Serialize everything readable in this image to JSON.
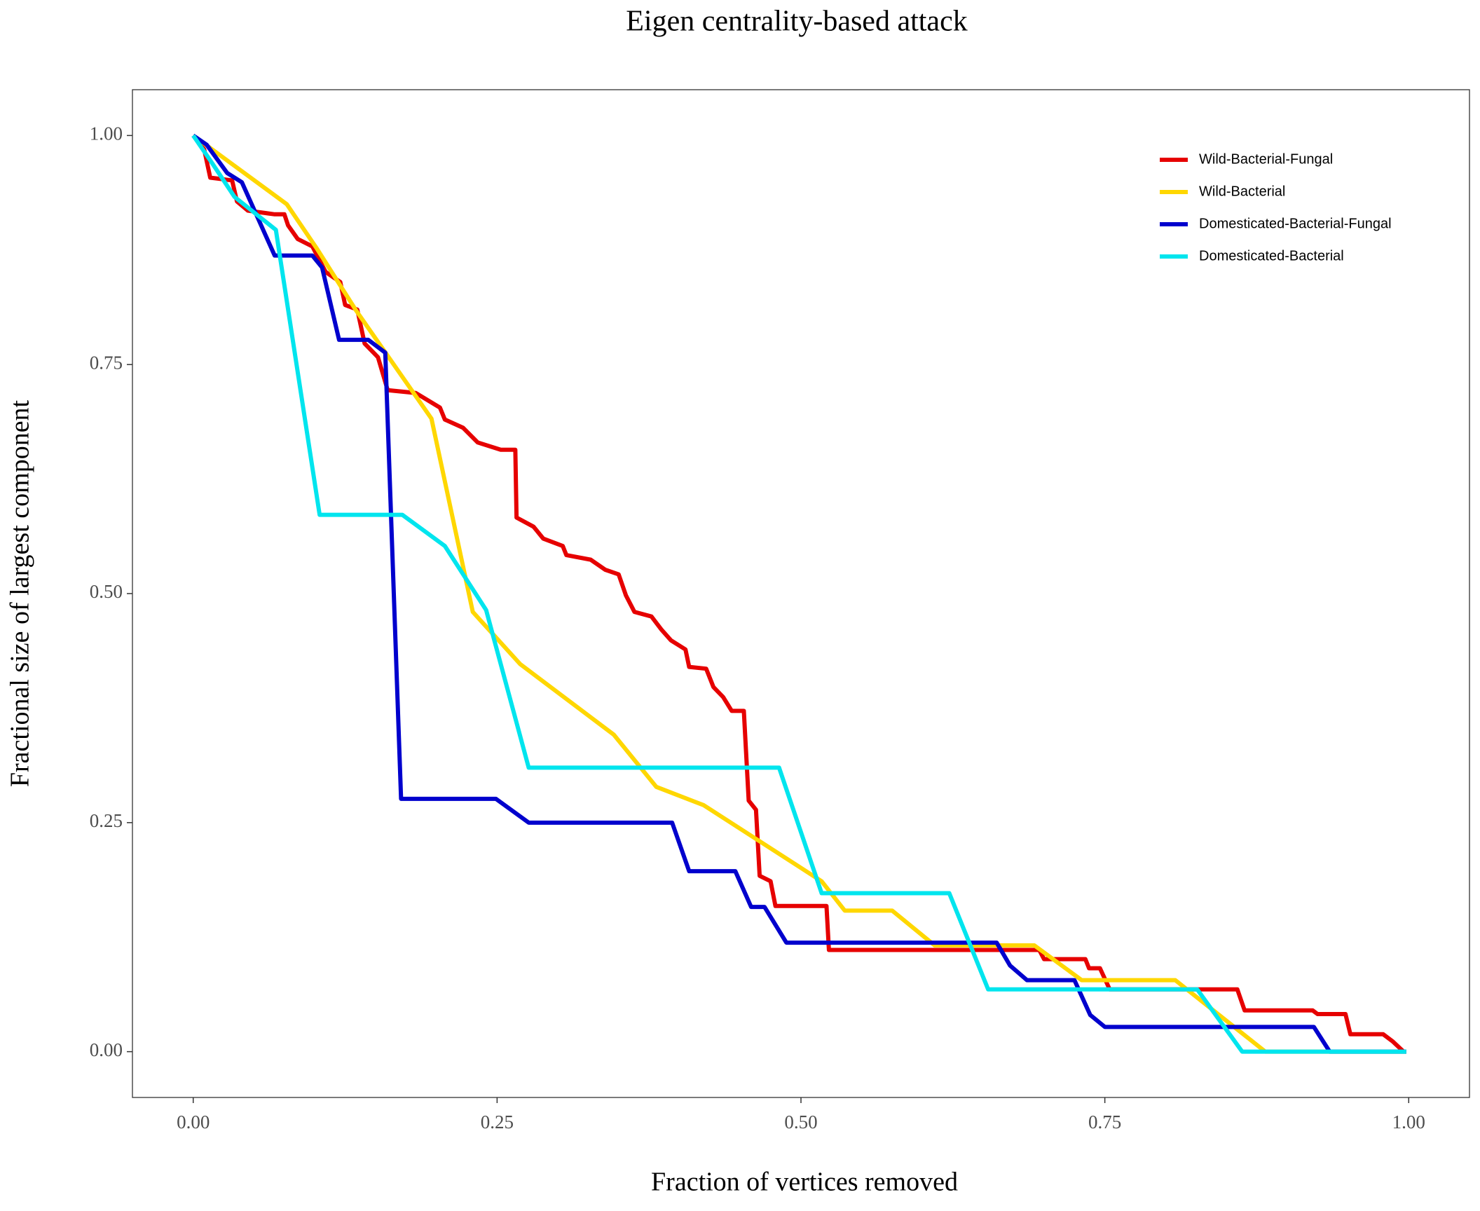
{
  "chart_data": {
    "type": "line",
    "title": "Eigen centrality-based attack",
    "x_label": "Fraction of vertices removed",
    "y_label": "Fractional size of largest component",
    "xlim": [
      -0.05,
      1.05
    ],
    "ylim": [
      -0.05,
      1.05
    ],
    "xticks": [
      {
        "value": 0,
        "label": "0.00"
      },
      {
        "value": 0.25,
        "label": "0.25"
      },
      {
        "value": 0.5,
        "label": "0.50"
      },
      {
        "value": 0.75,
        "label": "0.75"
      },
      {
        "value": 1,
        "label": "1.00"
      }
    ],
    "yticks": [
      {
        "value": 0,
        "label": "0.00"
      },
      {
        "value": 0.25,
        "label": "0.25"
      },
      {
        "value": 0.5,
        "label": "0.50"
      },
      {
        "value": 0.75,
        "label": "0.75"
      },
      {
        "value": 1,
        "label": "1.00"
      }
    ],
    "grid": false,
    "legend_position": "top-right",
    "series": [
      {
        "name": "Wild-Bacterial-Fungal",
        "color": "#e60000",
        "x": [
          0,
          0.009,
          0.014,
          0.032,
          0.036,
          0.045,
          0.067,
          0.075,
          0.078,
          0.086,
          0.098,
          0.109,
          0.121,
          0.125,
          0.135,
          0.141,
          0.152,
          0.16,
          0.183,
          0.203,
          0.207,
          0.222,
          0.234,
          0.253,
          0.265,
          0.266,
          0.28,
          0.288,
          0.304,
          0.307,
          0.327,
          0.339,
          0.35,
          0.356,
          0.363,
          0.377,
          0.385,
          0.393,
          0.405,
          0.408,
          0.422,
          0.428,
          0.436,
          0.443,
          0.453,
          0.457,
          0.463,
          0.466,
          0.475,
          0.479,
          0.521,
          0.523,
          0.696,
          0.7,
          0.734,
          0.737,
          0.746,
          0.754,
          0.859,
          0.865,
          0.921,
          0.925,
          0.948,
          0.952,
          0.979,
          0.987,
          0.995,
          0.996
        ],
        "values": [
          1,
          0.985,
          0.954,
          0.951,
          0.928,
          0.918,
          0.914,
          0.914,
          0.902,
          0.887,
          0.879,
          0.851,
          0.84,
          0.815,
          0.81,
          0.773,
          0.758,
          0.722,
          0.719,
          0.703,
          0.69,
          0.681,
          0.665,
          0.657,
          0.657,
          0.583,
          0.573,
          0.56,
          0.552,
          0.542,
          0.537,
          0.526,
          0.521,
          0.498,
          0.48,
          0.475,
          0.461,
          0.449,
          0.439,
          0.42,
          0.418,
          0.398,
          0.387,
          0.372,
          0.372,
          0.274,
          0.264,
          0.192,
          0.186,
          0.159,
          0.159,
          0.111,
          0.111,
          0.101,
          0.101,
          0.091,
          0.091,
          0.068,
          0.068,
          0.045,
          0.045,
          0.041,
          0.041,
          0.019,
          0.019,
          0.011,
          0.001,
          0
        ]
      },
      {
        "name": "Wild-Bacterial",
        "color": "#ffd700",
        "x": [
          0,
          0.077,
          0.102,
          0.134,
          0.196,
          0.23,
          0.269,
          0.346,
          0.381,
          0.42,
          0.517,
          0.536,
          0.575,
          0.61,
          0.692,
          0.731,
          0.808,
          0.882,
          0.998
        ],
        "values": [
          1,
          0.925,
          0.876,
          0.809,
          0.691,
          0.48,
          0.423,
          0.346,
          0.289,
          0.269,
          0.186,
          0.154,
          0.154,
          0.116,
          0.116,
          0.078,
          0.078,
          0,
          0
        ]
      },
      {
        "name": "Domesticated-Bacterial-Fungal",
        "color": "#0000cd",
        "x": [
          0,
          0.011,
          0.028,
          0.04,
          0.067,
          0.098,
          0.106,
          0.12,
          0.144,
          0.158,
          0.171,
          0.249,
          0.276,
          0.394,
          0.408,
          0.446,
          0.459,
          0.47,
          0.488,
          0.661,
          0.672,
          0.686,
          0.725,
          0.738,
          0.75,
          0.922,
          0.935,
          0.998
        ],
        "values": [
          1,
          0.99,
          0.959,
          0.949,
          0.869,
          0.869,
          0.856,
          0.777,
          0.777,
          0.763,
          0.276,
          0.276,
          0.25,
          0.25,
          0.197,
          0.197,
          0.158,
          0.158,
          0.119,
          0.119,
          0.094,
          0.078,
          0.078,
          0.04,
          0.027,
          0.027,
          0,
          0
        ]
      },
      {
        "name": "Domesticated-Bacterial",
        "color": "#00e5ee",
        "x": [
          0,
          0.016,
          0.034,
          0.068,
          0.104,
          0.172,
          0.207,
          0.241,
          0.276,
          0.482,
          0.517,
          0.622,
          0.654,
          0.826,
          0.863,
          0.998
        ],
        "values": [
          1,
          0.969,
          0.933,
          0.897,
          0.586,
          0.586,
          0.552,
          0.482,
          0.31,
          0.31,
          0.173,
          0.173,
          0.068,
          0.068,
          0,
          0
        ]
      }
    ]
  }
}
